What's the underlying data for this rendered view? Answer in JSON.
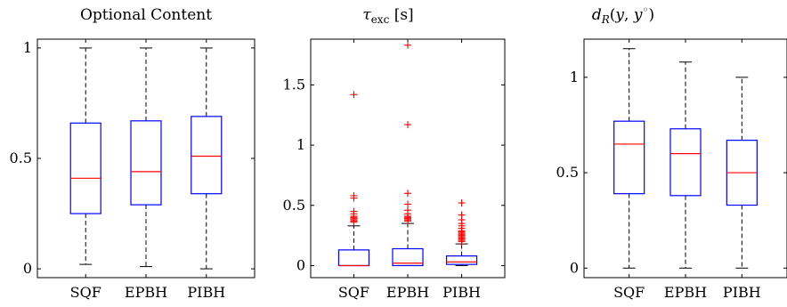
{
  "chart_data": [
    {
      "type": "boxplot",
      "title": "Optional Content",
      "ylim": [
        -0.04,
        1.04
      ],
      "yticks": [
        0,
        0.5,
        1
      ],
      "ytick_labels": [
        "0",
        "0.5",
        "1"
      ],
      "categories": [
        "SQF",
        "EPBH",
        "PIBH"
      ],
      "boxes": [
        {
          "min": 0.02,
          "q1": 0.25,
          "median": 0.41,
          "q3": 0.66,
          "max": 1.0,
          "outliers": []
        },
        {
          "min": 0.01,
          "q1": 0.29,
          "median": 0.44,
          "q3": 0.67,
          "max": 1.0,
          "outliers": []
        },
        {
          "min": 0.0,
          "q1": 0.34,
          "median": 0.51,
          "q3": 0.69,
          "max": 1.0,
          "outliers": []
        }
      ]
    },
    {
      "type": "boxplot",
      "title": "τ_exc [s]",
      "ylim": [
        -0.1,
        1.88
      ],
      "yticks": [
        0,
        0.5,
        1,
        1.5
      ],
      "ytick_labels": [
        "0",
        "0.5",
        "1",
        "1.5"
      ],
      "categories": [
        "SQF",
        "EPBH",
        "PIBH"
      ],
      "boxes": [
        {
          "min": 0.0,
          "q1": 0.0,
          "median": 0.0,
          "q3": 0.13,
          "max": 0.33,
          "outliers": [
            1.42,
            0.58,
            0.56,
            0.45,
            0.43,
            0.41,
            0.4,
            0.39,
            0.38,
            0.37,
            0.36
          ]
        },
        {
          "min": 0.0,
          "q1": 0.0,
          "median": 0.02,
          "q3": 0.14,
          "max": 0.35,
          "outliers": [
            1.83,
            1.17,
            0.6,
            0.51,
            0.46,
            0.43,
            0.41,
            0.4,
            0.39,
            0.38,
            0.37
          ]
        },
        {
          "min": 0.0,
          "q1": 0.01,
          "median": 0.03,
          "q3": 0.08,
          "max": 0.18,
          "outliers": [
            0.52,
            0.42,
            0.38,
            0.35,
            0.33,
            0.31,
            0.29,
            0.28,
            0.27,
            0.26,
            0.25,
            0.24,
            0.23,
            0.22,
            0.21,
            0.2
          ]
        }
      ]
    },
    {
      "type": "boxplot",
      "title": "d_R(y, y°)",
      "ylim": [
        -0.05,
        1.2
      ],
      "yticks": [
        0,
        0.5,
        1
      ],
      "ytick_labels": [
        "0",
        "0.5",
        "1"
      ],
      "categories": [
        "SQF",
        "EPBH",
        "PIBH"
      ],
      "boxes": [
        {
          "min": 0.0,
          "q1": 0.39,
          "median": 0.65,
          "q3": 0.77,
          "max": 1.15,
          "outliers": []
        },
        {
          "min": 0.0,
          "q1": 0.38,
          "median": 0.6,
          "q3": 0.73,
          "max": 1.08,
          "outliers": []
        },
        {
          "min": 0.0,
          "q1": 0.33,
          "median": 0.5,
          "q3": 0.67,
          "max": 1.0,
          "outliers": []
        }
      ]
    }
  ],
  "colors": {
    "box": "#0000ff",
    "median": "#ff0000",
    "outlier": "#ff0000",
    "whisker": "#000000"
  }
}
